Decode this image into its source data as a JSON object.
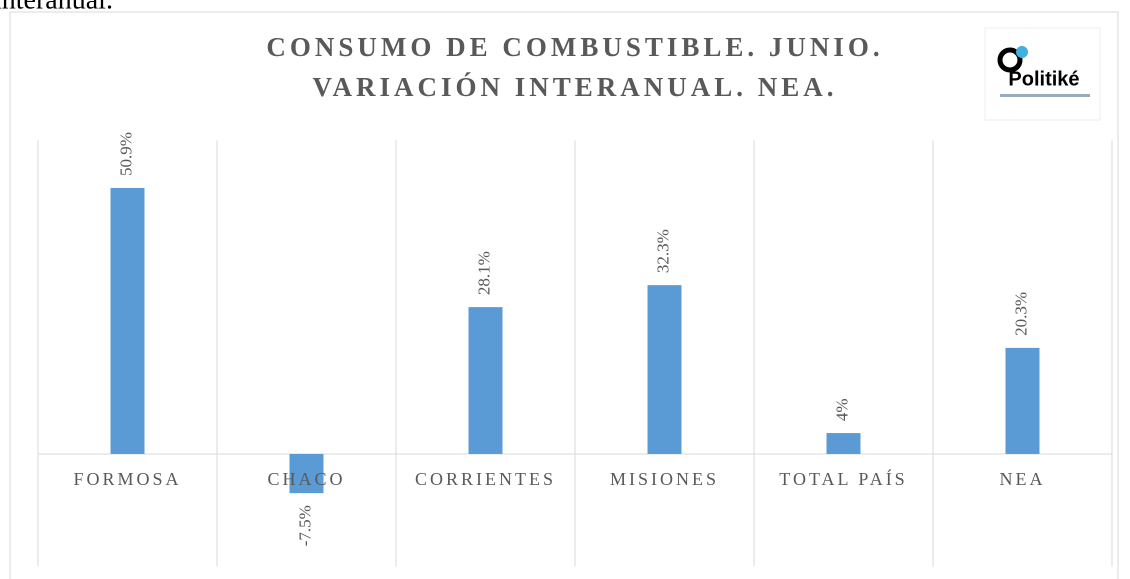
{
  "page_text": "interanual.",
  "logo_text": "Politiké",
  "chart_data": {
    "type": "bar",
    "title": [
      "CONSUMO DE COMBUSTIBLE. JUNIO.",
      "VARIACIÓN INTERANUAL. NEA."
    ],
    "categories": [
      "FORMOSA",
      "CHACO",
      "CORRIENTES",
      "MISIONES",
      "TOTAL PAÍS",
      "NEA"
    ],
    "values": [
      50.9,
      -7.5,
      28.1,
      32.3,
      4,
      20.3
    ],
    "value_labels": [
      "50.9%",
      "-7.5%",
      "28.1%",
      "32.3%",
      "4%",
      "20.3%"
    ],
    "color": "#5b9bd5",
    "ylim": [
      -20,
      60
    ]
  }
}
